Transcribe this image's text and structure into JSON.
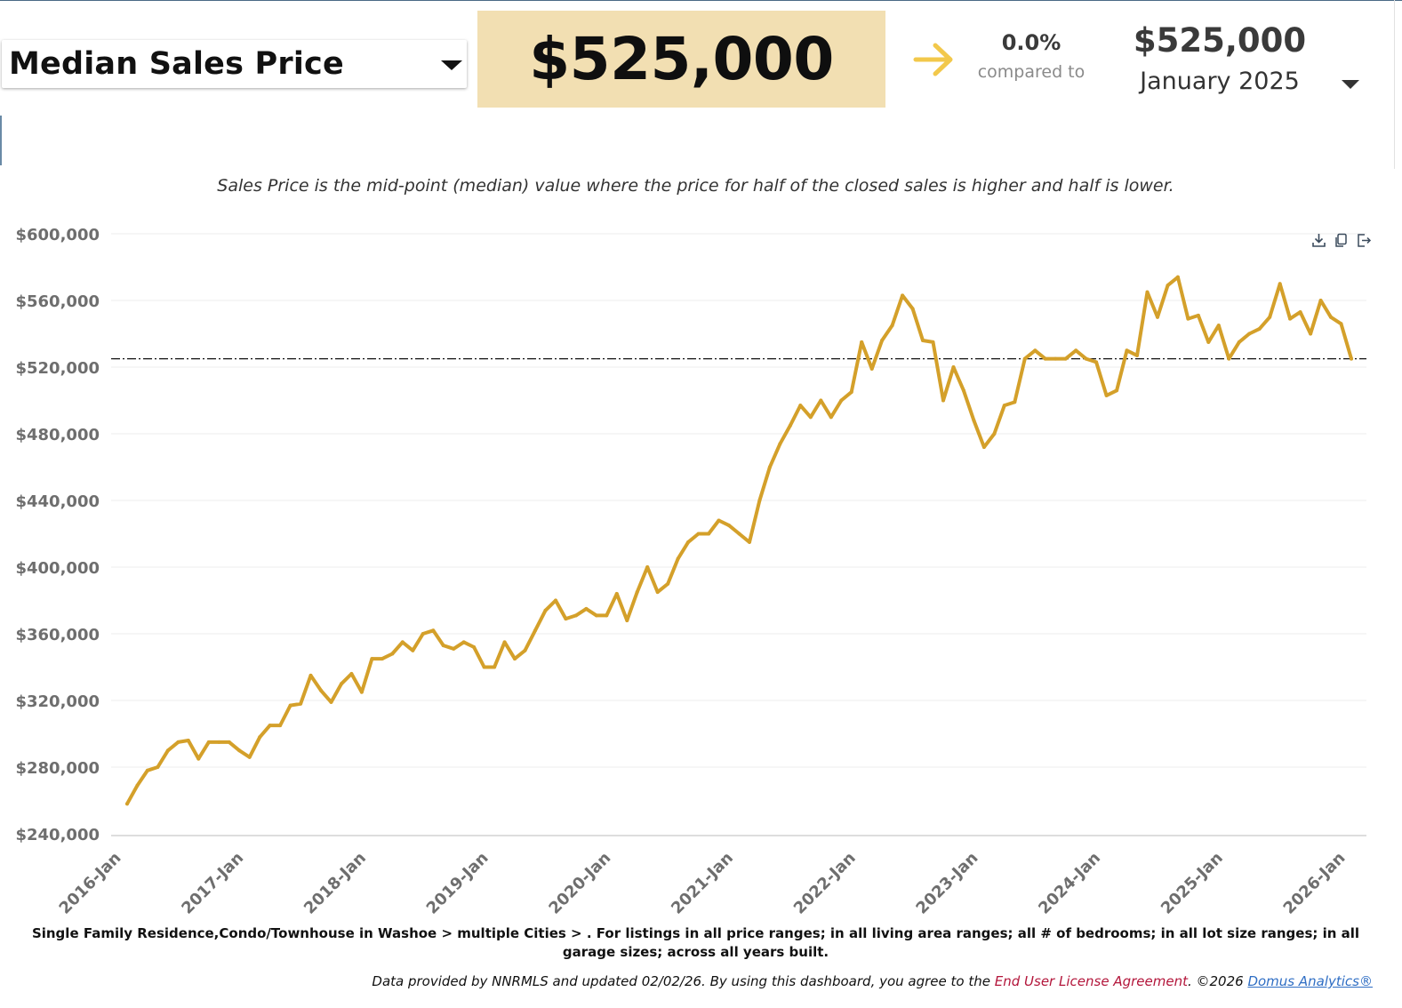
{
  "header": {
    "metric_label": "Median Sales Price",
    "current_value": "$525,000",
    "change_pct": "0.0%",
    "compared_to_label": "compared to",
    "compare_value": "$525,000",
    "compare_period": "January 2025"
  },
  "subtitle": "Sales Price is the mid-point (median) value where the price for half of the closed sales is higher and half is lower.",
  "footer": {
    "description": "Single Family Residence,Condo/Townhouse in Washoe > multiple Cities > . For listings in all price ranges; in all living area ranges; all # of bedrooms; in all lot size ranges; in all garage sizes; across all years built.",
    "attribution_prefix": "Data provided by NNRMLS and updated 02/02/26.  By using this dashboard, you agree to the",
    "eula_link": "End User License Agreement",
    "attribution_mid": ".  ©2026",
    "company_link": "Domus Analytics®"
  },
  "colors": {
    "line": "#d4a02a",
    "value_bg": "#f2dfb2",
    "arrow": "#f2c84b",
    "reference_line": "#111111",
    "eula": "#b3163b",
    "link": "#2f6ec4"
  },
  "icons": [
    "chevron-down-icon",
    "arrow-right-icon",
    "download-icon",
    "copy-icon",
    "export-icon"
  ],
  "chart_data": {
    "type": "line",
    "title": "Median Sales Price",
    "x_start": "2016-Jan",
    "x_end": "2026-Jan",
    "xlabel": "",
    "ylabel": "",
    "ylim": [
      240000,
      600000
    ],
    "y_ticks": [
      "$240,000",
      "$280,000",
      "$320,000",
      "$360,000",
      "$400,000",
      "$440,000",
      "$480,000",
      "$520,000",
      "$560,000",
      "$600,000"
    ],
    "x_ticks": [
      "2016-Jan",
      "2017-Jan",
      "2018-Jan",
      "2019-Jan",
      "2020-Jan",
      "2021-Jan",
      "2022-Jan",
      "2023-Jan",
      "2024-Jan",
      "2025-Jan",
      "2026-Jan"
    ],
    "grid": true,
    "reference_line": {
      "value": 525000,
      "style": "dash-dot"
    },
    "series": [
      {
        "name": "Median Sales Price",
        "values": [
          258000,
          269000,
          278000,
          280000,
          290000,
          295000,
          296000,
          285000,
          295000,
          295000,
          295000,
          290000,
          286000,
          298000,
          305000,
          305000,
          317000,
          318000,
          335000,
          326000,
          319000,
          330000,
          336000,
          325000,
          345000,
          345000,
          348000,
          355000,
          350000,
          360000,
          362000,
          353000,
          351000,
          355000,
          352000,
          340000,
          340000,
          355000,
          345000,
          350000,
          362000,
          374000,
          380000,
          369000,
          371000,
          375000,
          371000,
          371000,
          384000,
          368000,
          385000,
          400000,
          385000,
          390000,
          405000,
          415000,
          420000,
          420000,
          428000,
          425000,
          420000,
          415000,
          440000,
          460000,
          474000,
          485000,
          497000,
          490000,
          500000,
          490000,
          500000,
          505000,
          535000,
          519000,
          536000,
          545000,
          563000,
          555000,
          536000,
          535000,
          500000,
          520000,
          506000,
          488000,
          472000,
          480000,
          497000,
          499000,
          525000,
          530000,
          525000,
          525000,
          525000,
          530000,
          525000,
          523000,
          503000,
          506000,
          530000,
          527000,
          565000,
          550000,
          569000,
          574000,
          549000,
          551000,
          535000,
          545000,
          525000,
          535000,
          540000,
          543000,
          550000,
          570000,
          549000,
          553000,
          540000,
          560000,
          550000,
          546000,
          525000
        ]
      }
    ]
  }
}
